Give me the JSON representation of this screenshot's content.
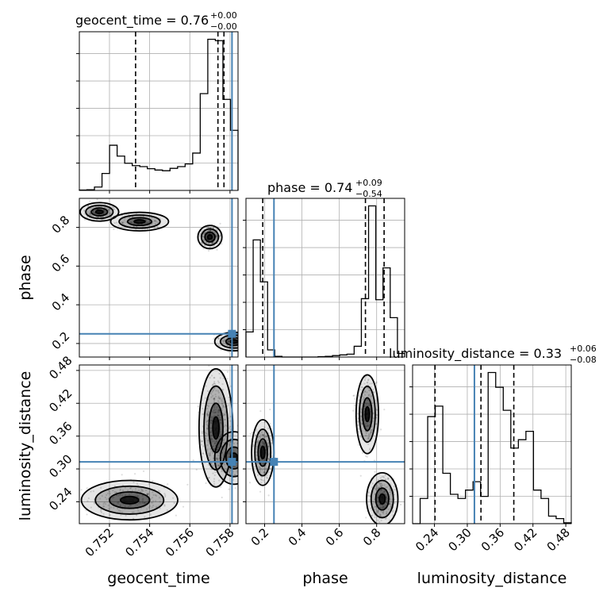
{
  "chart_data": {
    "type": "corner",
    "parameters": [
      "geocent_time",
      "phase",
      "luminosity_distance"
    ],
    "truths": {
      "geocent_time": 0.7581,
      "phase": 0.25,
      "luminosity_distance": 0.313
    },
    "colors": {
      "truth": "#4682b4",
      "hist": "#000000",
      "grid": "#b0b0b0",
      "sample": "#000000"
    },
    "grid": true,
    "diagonal": [
      {
        "parameter": "geocent_time",
        "title_main": "geocent_time = 0.76",
        "title_sup": "+0.00",
        "title_sub": "−0.00",
        "range": [
          0.7505,
          0.7584
        ],
        "ticks": [
          0.752,
          0.754,
          0.756,
          0.758
        ],
        "tick_labels": [
          "0.752",
          "0.754",
          "0.756",
          "0.758"
        ],
        "quantiles": [
          0.7533,
          0.7574,
          0.7577
        ],
        "counts": [
          1,
          2,
          10,
          50,
          133,
          101,
          80,
          73,
          70,
          64,
          60,
          58,
          65,
          70,
          78,
          110,
          285,
          445,
          441,
          268,
          177
        ]
      },
      {
        "parameter": "phase",
        "title_main": "phase = 0.74",
        "title_sup": "+0.09",
        "title_sub": "−0.54",
        "range": [
          0.1,
          0.95
        ],
        "ticks": [
          0.2,
          0.4,
          0.6,
          0.8
        ],
        "tick_labels": [
          "0.2",
          "0.4",
          "0.6",
          "0.8"
        ],
        "quantiles": [
          0.19,
          0.74,
          0.84
        ],
        "counts": [
          70,
          327,
          210,
          20,
          2,
          0,
          0,
          0,
          0,
          0,
          1,
          2,
          4,
          6,
          8,
          30,
          163,
          422,
          160,
          249,
          110,
          10
        ]
      },
      {
        "parameter": "luminosity_distance",
        "title_main": "luminosity_distance = 0.33",
        "title_sup": "+0.06",
        "title_sub": "−0.08",
        "range": [
          0.2,
          0.49
        ],
        "ticks": [
          0.24,
          0.3,
          0.36,
          0.42,
          0.48
        ],
        "tick_labels": [
          "0.24",
          "0.30",
          "0.36",
          "0.42",
          "0.48"
        ],
        "quantiles": [
          0.241,
          0.325,
          0.385
        ],
        "counts": [
          0,
          60,
          255,
          280,
          120,
          70,
          60,
          80,
          100,
          65,
          360,
          325,
          270,
          180,
          200,
          220,
          80,
          60,
          18,
          12,
          2
        ]
      }
    ],
    "lower": [
      {
        "x": "geocent_time",
        "y": "phase",
        "ylim": [
          0.13,
          0.95
        ],
        "yticks": [
          0.2,
          0.4,
          0.6,
          0.8
        ],
        "ytick_labels": [
          "0.2",
          "0.4",
          "0.6",
          "0.8"
        ],
        "ylabel": "phase",
        "modes": [
          {
            "x": 0.7515,
            "y": 0.88,
            "sx": 0.0004,
            "sy": 0.02,
            "w": 0.2
          },
          {
            "x": 0.7535,
            "y": 0.83,
            "sx": 0.0006,
            "sy": 0.02,
            "w": 0.18
          },
          {
            "x": 0.757,
            "y": 0.75,
            "sx": 0.00025,
            "sy": 0.025,
            "w": 0.4
          },
          {
            "x": 0.7582,
            "y": 0.21,
            "sx": 0.0004,
            "sy": 0.02,
            "w": 0.22
          }
        ]
      },
      {
        "x": "geocent_time",
        "y": "luminosity_distance",
        "ylim": [
          0.2,
          0.49
        ],
        "yticks": [
          0.24,
          0.3,
          0.36,
          0.42,
          0.48
        ],
        "ytick_labels": [
          "0.24",
          "0.30",
          "0.36",
          "0.42",
          "0.48"
        ],
        "ylabel": "luminosity_distance",
        "xlabel": "geocent_time",
        "modes": [
          {
            "x": 0.753,
            "y": 0.243,
            "sx": 0.001,
            "sy": 0.015,
            "w": 0.3
          },
          {
            "x": 0.7573,
            "y": 0.375,
            "sx": 0.00035,
            "sy": 0.045,
            "w": 0.55
          },
          {
            "x": 0.7582,
            "y": 0.32,
            "sx": 0.0004,
            "sy": 0.02,
            "w": 0.15
          }
        ]
      },
      {
        "x": "phase",
        "y": "luminosity_distance",
        "xlabel": "phase",
        "modes": [
          {
            "x": 0.19,
            "y": 0.33,
            "sx": 0.025,
            "sy": 0.025,
            "w": 0.32
          },
          {
            "x": 0.75,
            "y": 0.4,
            "sx": 0.025,
            "sy": 0.03,
            "w": 0.33
          },
          {
            "x": 0.83,
            "y": 0.245,
            "sx": 0.035,
            "sy": 0.02,
            "w": 0.35
          }
        ]
      }
    ],
    "xlabel_bottom_right": "luminosity_distance"
  }
}
